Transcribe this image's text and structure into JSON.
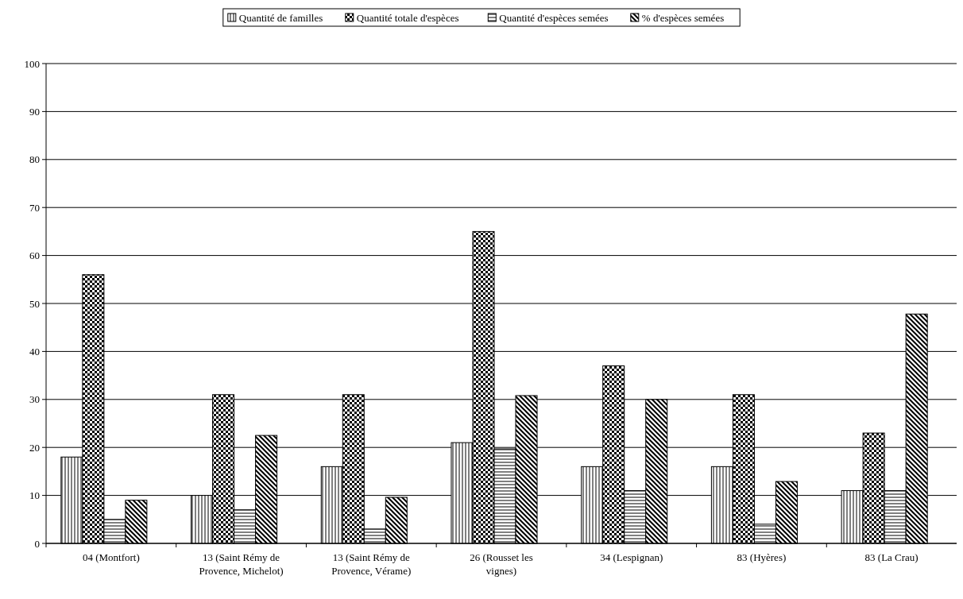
{
  "chart_data": {
    "type": "bar",
    "categories": [
      "04 (Montfort)",
      "13 (Saint Rémy de Provence, Michelot)",
      "13 (Saint Rémy de Provence, Vérame)",
      "26 (Rousset les vignes)",
      "34 (Lespignan)",
      "83 (Hyères)",
      "83 (La Crau)"
    ],
    "series": [
      {
        "name": "Quantité de familles",
        "color": "#000000",
        "values": [
          18,
          10,
          16,
          21,
          16,
          16,
          11
        ]
      },
      {
        "name": "Quantité totale d'espèces",
        "color": "#000000",
        "values": [
          56,
          31,
          31,
          65,
          37,
          31,
          23
        ]
      },
      {
        "name": "Quantité d'espèces semées",
        "color": "#000000",
        "values": [
          5,
          7,
          3,
          19.7,
          11,
          4,
          11
        ]
      },
      {
        "name": "% d'espèces semées",
        "color": "#000000",
        "values": [
          9,
          22.5,
          9.6,
          30.8,
          30,
          12.9,
          47.8
        ]
      }
    ],
    "ylim": [
      0,
      100
    ],
    "yticks": [
      0,
      10,
      20,
      30,
      40,
      50,
      60,
      70,
      80,
      90,
      100
    ],
    "grid": "y",
    "legend": "top"
  }
}
